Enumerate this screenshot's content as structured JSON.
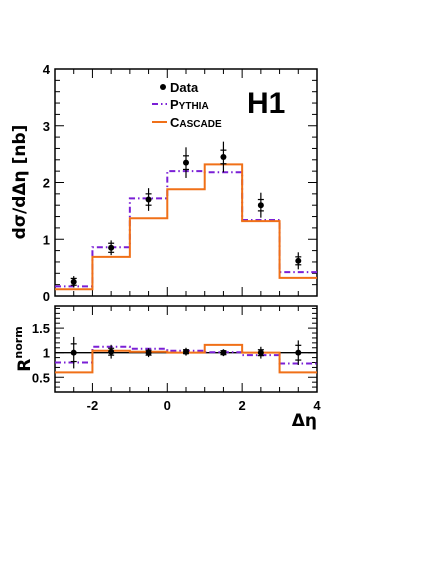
{
  "chart_data": [
    {
      "type": "line",
      "panel": "top",
      "ylabel": "dσ/dΔη [nb]",
      "logo": "H1",
      "xlim": [
        -3,
        4
      ],
      "ylim": [
        0,
        4
      ],
      "yticks": [
        0,
        1,
        2,
        3,
        4
      ],
      "bin_edges": [
        -3,
        -2,
        -1,
        0,
        1,
        2,
        3,
        4
      ],
      "data_points": {
        "name": "Data",
        "x": [
          -2.5,
          -1.5,
          -0.5,
          0.5,
          1.5,
          2.5,
          3.5
        ],
        "y": [
          0.25,
          0.85,
          1.7,
          2.35,
          2.45,
          1.6,
          0.62
        ],
        "err_stat": [
          0.06,
          0.08,
          0.1,
          0.12,
          0.12,
          0.1,
          0.07
        ],
        "err_tot": [
          0.1,
          0.13,
          0.2,
          0.27,
          0.27,
          0.22,
          0.15
        ]
      },
      "series": [
        {
          "name": "PYTHIA",
          "style": "dash-dot",
          "color": "#7a1fd6",
          "values": [
            0.17,
            0.86,
            1.72,
            2.2,
            2.18,
            1.34,
            0.42
          ]
        },
        {
          "name": "CASCADE",
          "style": "solid",
          "color": "#f07018",
          "values": [
            0.12,
            0.69,
            1.37,
            1.88,
            2.32,
            1.32,
            0.32
          ]
        }
      ]
    },
    {
      "type": "line",
      "panel": "bottom",
      "ylabel": "R",
      "ylabel_sup": "norm",
      "xlabel": "Δη",
      "xlim": [
        -3,
        4
      ],
      "ylim": [
        0.2,
        1.95
      ],
      "yticks": [
        0.5,
        1,
        1.5
      ],
      "ytick_labels": [
        "0.5",
        "1",
        "1.5"
      ],
      "xticks": [
        -2,
        0,
        2,
        4
      ],
      "xtick_labels": [
        "-2",
        "0",
        "2",
        "4"
      ],
      "reference_line": 1,
      "bin_edges": [
        -3,
        -2,
        -1,
        0,
        1,
        2,
        3,
        4
      ],
      "data_points": {
        "name": "Data",
        "x": [
          -2.5,
          -1.5,
          -0.5,
          0.5,
          1.5,
          2.5,
          3.5
        ],
        "y": [
          1.0,
          1.02,
          1.0,
          1.02,
          1.0,
          1.0,
          1.0
        ],
        "err_stat": [
          0.18,
          0.07,
          0.05,
          0.04,
          0.04,
          0.06,
          0.15
        ],
        "err_tot": [
          0.32,
          0.14,
          0.09,
          0.08,
          0.07,
          0.12,
          0.25
        ]
      },
      "series": [
        {
          "name": "PYTHIA",
          "style": "dash-dot",
          "color": "#7a1fd6",
          "values": [
            0.8,
            1.12,
            1.08,
            1.04,
            1.01,
            0.95,
            0.78
          ]
        },
        {
          "name": "CASCADE",
          "style": "solid",
          "color": "#f07018",
          "values": [
            0.6,
            1.04,
            1.02,
            1.0,
            1.16,
            1.0,
            0.6
          ]
        }
      ]
    }
  ],
  "colors": {
    "data": "#000000",
    "pythia": "#7a1fd6",
    "cascade": "#f07018"
  }
}
